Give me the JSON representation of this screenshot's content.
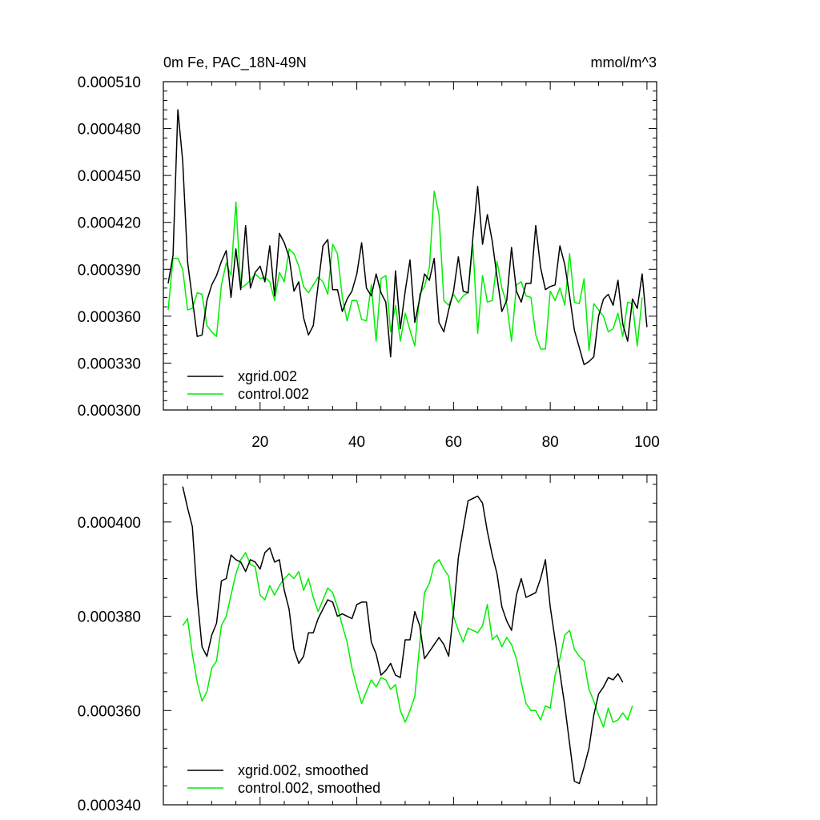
{
  "chart_data": [
    {
      "type": "line",
      "title": "0m Fe, PAC_18N-49N",
      "units": "mmol/m^3",
      "xlim": [
        0,
        102
      ],
      "ylim": [
        0.0003,
        0.00051
      ],
      "yticks": [
        0.0003,
        0.00033,
        0.00036,
        0.00039,
        0.00042,
        0.00045,
        0.00048,
        0.00051
      ],
      "ytick_labels": [
        "0.000300",
        "0.000330",
        "0.000360",
        "0.000390",
        "0.000420",
        "0.000450",
        "0.000480",
        "0.000510"
      ],
      "xticks": [
        20,
        40,
        60,
        80,
        100
      ],
      "xtick_labels": [
        "20",
        "40",
        "60",
        "80",
        "100"
      ],
      "legend_position": "bottom-left",
      "series": [
        {
          "name": "xgrid.002",
          "color": "#000000",
          "x_start": 1,
          "values": [
            0.000381,
            0.000399,
            0.000492,
            0.000459,
            0.000395,
            0.000371,
            0.000347,
            0.000348,
            0.00037,
            0.00038,
            0.000386,
            0.000395,
            0.000402,
            0.000372,
            0.000403,
            0.000377,
            0.000418,
            0.000378,
            0.000388,
            0.000392,
            0.000382,
            0.000405,
            0.000373,
            0.000413,
            0.000407,
            0.000398,
            0.000376,
            0.000382,
            0.000359,
            0.000348,
            0.000354,
            0.00038,
            0.000405,
            0.000409,
            0.000377,
            0.000377,
            0.000363,
            0.000371,
            0.000376,
            0.000387,
            0.000407,
            0.000378,
            0.000373,
            0.000387,
            0.000375,
            0.000369,
            0.000334,
            0.000389,
            0.000352,
            0.000376,
            0.000396,
            0.000356,
            0.000371,
            0.000387,
            0.000383,
            0.000397,
            0.000356,
            0.00035,
            0.000364,
            0.000376,
            0.000398,
            0.000376,
            0.000375,
            0.00041,
            0.000443,
            0.000406,
            0.000425,
            0.000408,
            0.000385,
            0.000363,
            0.00037,
            0.000404,
            0.000376,
            0.000369,
            0.000381,
            0.000381,
            0.000418,
            0.000391,
            0.000377,
            0.000379,
            0.00038,
            0.000405,
            0.000393,
            0.000373,
            0.000351,
            0.00034,
            0.000329,
            0.000331,
            0.000334,
            0.00036,
            0.000371,
            0.000374,
            0.000367,
            0.000383,
            0.000355,
            0.000344,
            0.000371,
            0.000365,
            0.000387,
            0.000353
          ]
        },
        {
          "name": "control.002",
          "color": "#00ee00",
          "x_start": 1,
          "values": [
            0.000364,
            0.000397,
            0.000397,
            0.00039,
            0.000364,
            0.000365,
            0.000375,
            0.000374,
            0.000354,
            0.00035,
            0.000347,
            0.00038,
            0.000394,
            0.000386,
            0.000433,
            0.000378,
            0.00038,
            0.000383,
            0.000387,
            0.000384,
            0.000385,
            0.000382,
            0.00037,
            0.000388,
            0.000382,
            0.000403,
            0.0004,
            0.000392,
            0.000379,
            0.000375,
            0.00038,
            0.000385,
            0.000382,
            0.000374,
            0.000406,
            0.0004,
            0.000372,
            0.000357,
            0.00037,
            0.00037,
            0.000358,
            0.000357,
            0.00038,
            0.000344,
            0.000384,
            0.000386,
            0.00035,
            0.000367,
            0.000344,
            0.000362,
            0.000351,
            0.000341,
            0.000374,
            0.000379,
            0.000391,
            0.00044,
            0.000425,
            0.00037,
            0.000367,
            0.000374,
            0.000369,
            0.000373,
            0.000375,
            0.000406,
            0.000349,
            0.000386,
            0.000369,
            0.00037,
            0.000395,
            0.000378,
            0.000368,
            0.000344,
            0.00038,
            0.000382,
            0.000373,
            0.000372,
            0.000348,
            0.000339,
            0.000339,
            0.000376,
            0.00037,
            0.000378,
            0.000367,
            0.0004,
            0.000369,
            0.000368,
            0.000384,
            0.000338,
            0.000368,
            0.000364,
            0.00036,
            0.00035,
            0.000352,
            0.000362,
            0.000347,
            0.000369,
            0.000368,
            0.000341,
            0.000372
          ]
        }
      ]
    },
    {
      "type": "line",
      "title": "",
      "xlim": [
        0,
        102
      ],
      "ylim": [
        0.00034,
        0.00041
      ],
      "yticks": [
        0.00034,
        0.00036,
        0.00038,
        0.0004
      ],
      "ytick_labels": [
        "0.000340",
        "0.000360",
        "0.000380",
        "0.000400"
      ],
      "xticks": [
        20,
        40,
        60,
        80,
        100
      ],
      "xtick_labels": [],
      "legend_position": "bottom-left",
      "series": [
        {
          "name": "xgrid.002, smoothed",
          "color": "#000000",
          "x_start": 4,
          "values": [
            0.0004075,
            0.000403,
            0.000399,
            0.000384,
            0.0003735,
            0.0003715,
            0.000376,
            0.0003785,
            0.0003875,
            0.000388,
            0.000393,
            0.000392,
            0.0003915,
            0.0003895,
            0.000392,
            0.0003915,
            0.00039,
            0.0003935,
            0.0003945,
            0.0003915,
            0.000392,
            0.0003855,
            0.0003815,
            0.000373,
            0.00037,
            0.0003715,
            0.0003765,
            0.0003765,
            0.0003795,
            0.0003815,
            0.0003835,
            0.000383,
            0.00038,
            0.0003805,
            0.00038,
            0.0003795,
            0.0003825,
            0.000383,
            0.000383,
            0.0003745,
            0.000372,
            0.0003675,
            0.0003685,
            0.00037,
            0.0003675,
            0.000367,
            0.000375,
            0.000375,
            0.000381,
            0.000378,
            0.000371,
            0.0003725,
            0.000374,
            0.0003755,
            0.000374,
            0.0003715,
            0.000381,
            0.0003925,
            0.0003985,
            0.0004045,
            0.000405,
            0.0004055,
            0.000404,
            0.000398,
            0.000393,
            0.000389,
            0.000382,
            0.000379,
            0.000377,
            0.0003845,
            0.000388,
            0.000384,
            0.0003845,
            0.000385,
            0.000388,
            0.000392,
            0.000382,
            0.000375,
            0.000368,
            0.000361,
            0.000353,
            0.000345,
            0.0003445,
            0.000348,
            0.000352,
            0.000359,
            0.0003635,
            0.000365,
            0.000367,
            0.0003665,
            0.0003678,
            0.000366
          ]
        },
        {
          "name": "control.002, smoothed",
          "color": "#00ee00",
          "x_start": 4,
          "values": [
            0.000378,
            0.0003795,
            0.000372,
            0.000366,
            0.000362,
            0.000364,
            0.000369,
            0.0003705,
            0.000378,
            0.00038,
            0.0003845,
            0.000389,
            0.000392,
            0.0003935,
            0.000391,
            0.0003905,
            0.0003845,
            0.0003835,
            0.0003865,
            0.0003845,
            0.0003865,
            0.000388,
            0.000389,
            0.000388,
            0.0003895,
            0.0003855,
            0.000388,
            0.000384,
            0.000381,
            0.0003835,
            0.000386,
            0.000385,
            0.000382,
            0.000378,
            0.0003745,
            0.000369,
            0.000365,
            0.0003615,
            0.000364,
            0.0003665,
            0.000365,
            0.000367,
            0.0003665,
            0.0003645,
            0.0003655,
            0.00036,
            0.0003575,
            0.00036,
            0.000363,
            0.000374,
            0.000385,
            0.000387,
            0.000391,
            0.000392,
            0.00039,
            0.0003885,
            0.00038,
            0.000377,
            0.0003745,
            0.0003775,
            0.000377,
            0.0003765,
            0.000378,
            0.0003825,
            0.000375,
            0.000376,
            0.0003735,
            0.0003755,
            0.000374,
            0.000371,
            0.000366,
            0.0003615,
            0.00036,
            0.00036,
            0.000358,
            0.000361,
            0.0003605,
            0.0003675,
            0.000371,
            0.000376,
            0.000377,
            0.000373,
            0.0003715,
            0.0003705,
            0.0003645,
            0.000362,
            0.000359,
            0.0003565,
            0.0003605,
            0.0003575,
            0.000358,
            0.0003595,
            0.000358,
            0.000361
          ]
        }
      ]
    }
  ]
}
